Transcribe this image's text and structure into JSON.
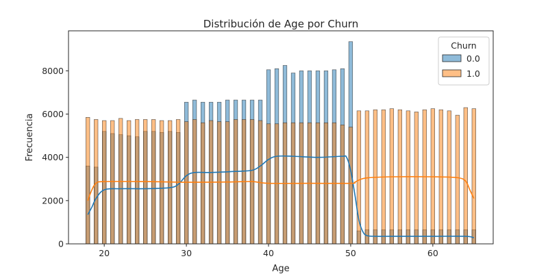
{
  "chart_data": {
    "type": "bar",
    "title": "Distribución de Age por Churn",
    "xlabel": "Age",
    "ylabel": "Frecuencia",
    "xlim": [
      15.65,
      67.35
    ],
    "ylim": [
      0,
      9850
    ],
    "xticks": [
      20,
      30,
      40,
      50,
      60
    ],
    "yticks": [
      0,
      2000,
      4000,
      6000,
      8000
    ],
    "legend": {
      "title": "Churn",
      "placement": "top-right"
    },
    "bin_width": 0.47,
    "x": [
      18,
      19,
      20,
      21,
      22,
      23,
      24,
      25,
      26,
      27,
      28,
      29,
      30,
      31,
      32,
      33,
      34,
      35,
      36,
      37,
      38,
      39,
      40,
      41,
      42,
      43,
      44,
      45,
      46,
      47,
      48,
      49,
      50,
      51,
      52,
      53,
      54,
      55,
      56,
      57,
      58,
      59,
      60,
      61,
      62,
      63,
      64,
      65
    ],
    "series": [
      {
        "name": "0.0",
        "color": "#1f77b4",
        "values": [
          3600,
          3550,
          5200,
          5100,
          5050,
          5000,
          4950,
          5200,
          5200,
          5150,
          5200,
          5150,
          6550,
          6650,
          6550,
          6550,
          6550,
          6650,
          6650,
          6650,
          6650,
          6650,
          8050,
          8100,
          8250,
          7900,
          8000,
          8000,
          8000,
          8000,
          8050,
          8100,
          9350,
          600,
          650,
          650,
          650,
          650,
          650,
          650,
          650,
          650,
          650,
          650,
          650,
          650,
          650,
          650
        ]
      },
      {
        "name": "1.0",
        "color": "#ff7f0e",
        "values": [
          5850,
          5750,
          5700,
          5700,
          5800,
          5700,
          5750,
          5750,
          5750,
          5700,
          5700,
          5750,
          5650,
          5750,
          5600,
          5700,
          5650,
          5650,
          5750,
          5750,
          5750,
          5700,
          5550,
          5550,
          5600,
          5600,
          5600,
          5600,
          5600,
          5600,
          5600,
          5500,
          5400,
          6150,
          6150,
          6200,
          6200,
          6250,
          6200,
          6150,
          6100,
          6200,
          6250,
          6200,
          6150,
          5950,
          6300,
          6250
        ]
      }
    ],
    "kde": [
      {
        "name": "0.0",
        "color": "#1f77b4",
        "x": [
          18,
          18.5,
          19,
          20,
          22,
          25,
          28,
          29,
          30,
          31,
          33,
          36,
          38,
          39,
          40,
          41,
          43,
          46,
          49,
          49.5,
          50,
          50.5,
          51,
          51.5,
          52,
          53,
          55,
          60,
          64,
          65
        ],
        "y": [
          1350,
          1700,
          2100,
          2500,
          2550,
          2550,
          2600,
          2750,
          3150,
          3300,
          3300,
          3350,
          3400,
          3600,
          3900,
          4050,
          4050,
          4000,
          4050,
          4000,
          3400,
          2300,
          1100,
          550,
          380,
          350,
          350,
          350,
          350,
          280
        ]
      },
      {
        "name": "1.0",
        "color": "#ff7f0e",
        "x": [
          18,
          18.5,
          19,
          20,
          25,
          30,
          35,
          38,
          40,
          45,
          50,
          50.5,
          51,
          52,
          55,
          60,
          63,
          64,
          64.5,
          65
        ],
        "y": [
          2000,
          2500,
          2800,
          2880,
          2880,
          2850,
          2860,
          2880,
          2800,
          2800,
          2800,
          2850,
          2950,
          3050,
          3100,
          3100,
          3060,
          2900,
          2500,
          2100
        ]
      }
    ]
  }
}
